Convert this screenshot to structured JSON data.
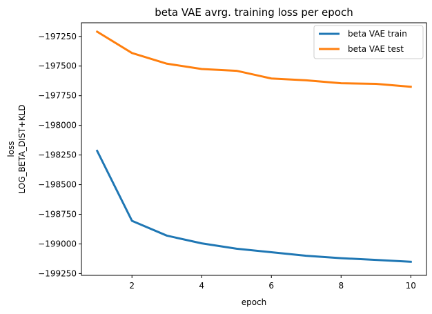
{
  "chart_data": {
    "type": "line",
    "title": "beta VAE avrg. training loss per epoch",
    "xlabel": "epoch",
    "ylabel": [
      "loss",
      "LOG_BETA_DIST+KLD"
    ],
    "x": [
      1,
      2,
      3,
      4,
      5,
      6,
      7,
      8,
      9,
      10
    ],
    "xlim": [
      0.55,
      10.45
    ],
    "ylim": [
      -199265,
      -197135
    ],
    "xticks": [
      2,
      4,
      6,
      8,
      10
    ],
    "yticks": [
      -199250,
      -199000,
      -198750,
      -198500,
      -198250,
      -198000,
      -197750,
      -197500,
      -197250
    ],
    "xtick_labels": [
      "2",
      "4",
      "6",
      "8",
      "10"
    ],
    "ytick_labels": [
      "−199250",
      "−199000",
      "−198750",
      "−198500",
      "−198250",
      "−198000",
      "−197750",
      "−197500",
      "−197250"
    ],
    "grid": false,
    "legend_position": "top-right",
    "series": [
      {
        "name": "beta VAE train",
        "color": "#1f77b4",
        "values": [
          -198215,
          -198805,
          -198930,
          -198995,
          -199040,
          -199070,
          -199100,
          -199120,
          -199135,
          -199150
        ]
      },
      {
        "name": "beta VAE test",
        "color": "#ff7f0e",
        "values": [
          -197210,
          -197390,
          -197480,
          -197525,
          -197540,
          -197605,
          -197620,
          -197645,
          -197650,
          -197675
        ]
      }
    ]
  }
}
